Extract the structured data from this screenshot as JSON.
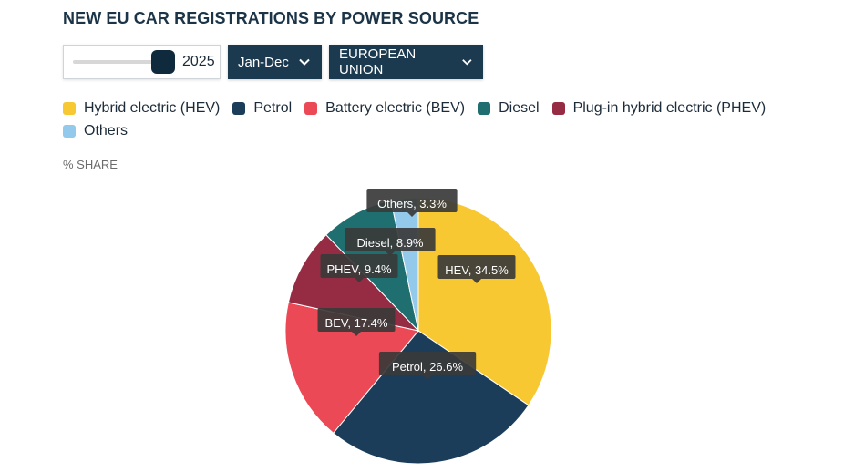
{
  "title": "NEW EU CAR REGISTRATIONS BY POWER SOURCE",
  "controls": {
    "year": "2025",
    "year_slider_value": 1,
    "period_label": "Jan-Dec",
    "region_label": "EUROPEAN UNION"
  },
  "legend": [
    {
      "label": "Hybrid electric (HEV)",
      "color": "#f8c832"
    },
    {
      "label": "Petrol",
      "color": "#1b3d5a"
    },
    {
      "label": "Battery electric (BEV)",
      "color": "#ea4955"
    },
    {
      "label": "Diesel",
      "color": "#1f6e70"
    },
    {
      "label": "Plug-in hybrid electric (PHEV)",
      "color": "#962c43"
    },
    {
      "label": "Others",
      "color": "#93c9ea"
    }
  ],
  "unit_label": "% SHARE",
  "chart_data": {
    "type": "pie",
    "unit": "%",
    "slices": [
      {
        "name": "HEV",
        "value": 34.5,
        "label": "HEV, 34.5%",
        "color": "#f8c832"
      },
      {
        "name": "Petrol",
        "value": 26.6,
        "label": "Petrol, 26.6%",
        "color": "#1b3d5a"
      },
      {
        "name": "BEV",
        "value": 17.4,
        "label": "BEV, 17.4%",
        "color": "#ea4955"
      },
      {
        "name": "PHEV",
        "value": 9.4,
        "label": "PHEV, 9.4%",
        "color": "#962c43"
      },
      {
        "name": "Diesel",
        "value": 8.9,
        "label": "Diesel, 8.9%",
        "color": "#1f6e70"
      },
      {
        "name": "Others",
        "value": 3.3,
        "label": "Others, 3.3%",
        "color": "#93c9ea"
      }
    ]
  }
}
